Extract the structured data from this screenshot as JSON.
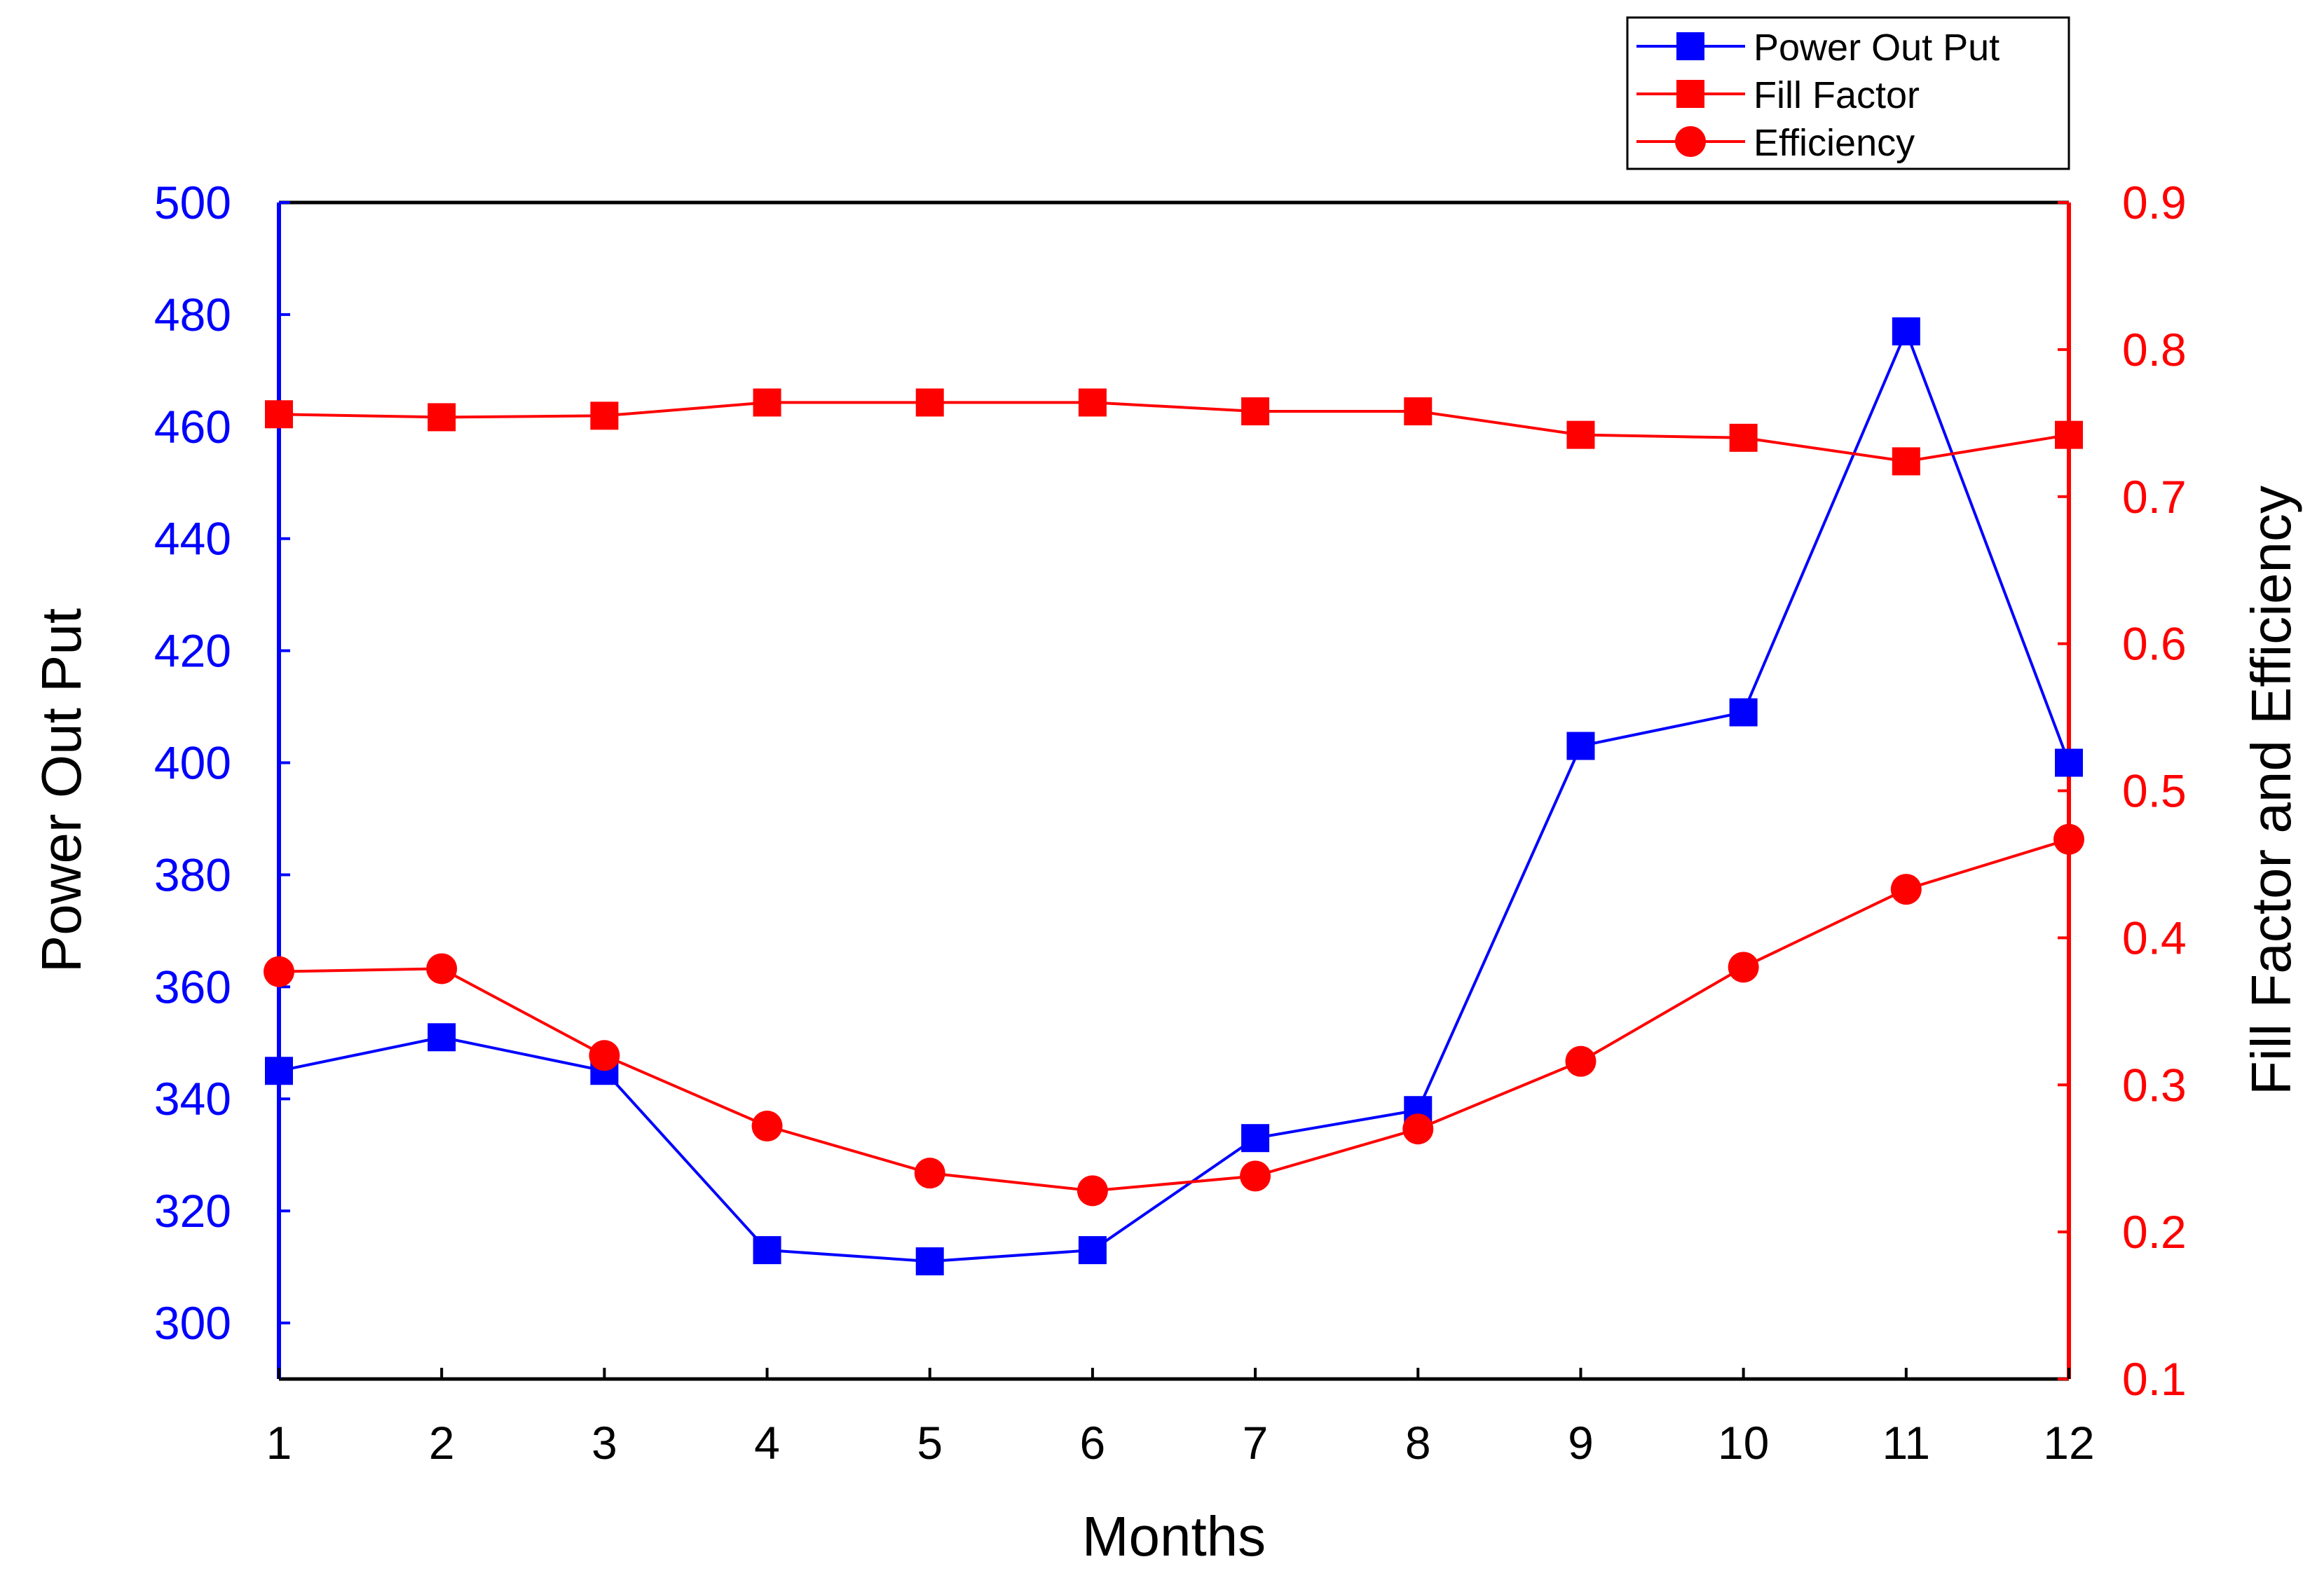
{
  "chart_data": {
    "type": "line",
    "x": [
      1,
      2,
      3,
      4,
      5,
      6,
      7,
      8,
      9,
      10,
      11,
      12
    ],
    "xlabel": "Months",
    "xlim": [
      1,
      12
    ],
    "x_ticks": [
      "1",
      "2",
      "3",
      "4",
      "5",
      "6",
      "7",
      "8",
      "9",
      "10",
      "11",
      "12"
    ],
    "y_left": {
      "label": "Power Out Put",
      "range": [
        290,
        500
      ],
      "ticks": [
        "300",
        "320",
        "340",
        "360",
        "380",
        "400",
        "420",
        "440",
        "460",
        "480",
        "500"
      ],
      "color": "#0000ff"
    },
    "y_right": {
      "label": "Fill Factor and Efficiency",
      "range": [
        0.1,
        0.9
      ],
      "ticks": [
        "0.1",
        "0.2",
        "0.3",
        "0.4",
        "0.5",
        "0.6",
        "0.7",
        "0.8",
        "0.9"
      ],
      "color": "#ff0000"
    },
    "series": [
      {
        "name": "Power Out Put",
        "axis": "left",
        "marker": "square",
        "color": "#0000ff",
        "values": [
          345,
          351,
          345,
          313,
          311,
          313,
          333,
          338,
          403,
          409,
          477,
          400
        ]
      },
      {
        "name": "Fill Factor",
        "axis": "right",
        "marker": "square",
        "color": "#ff0000",
        "values": [
          0.756,
          0.754,
          0.755,
          0.764,
          0.764,
          0.764,
          0.758,
          0.758,
          0.742,
          0.74,
          0.724,
          0.742
        ]
      },
      {
        "name": "Efficiency",
        "axis": "right",
        "marker": "circle",
        "color": "#ff0000",
        "values": [
          0.377,
          0.379,
          0.32,
          0.272,
          0.24,
          0.228,
          0.238,
          0.27,
          0.316,
          0.38,
          0.433,
          0.467
        ]
      }
    ],
    "legend_position": "top-right",
    "grid": false
  }
}
